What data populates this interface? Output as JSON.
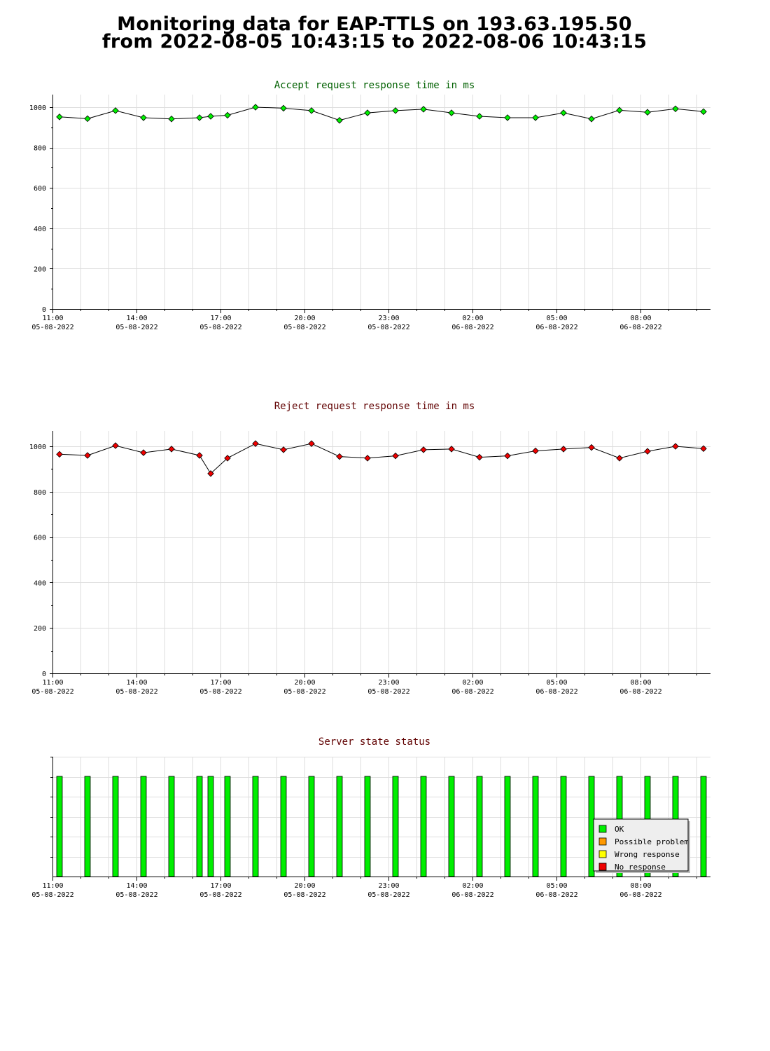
{
  "page": {
    "title_line1": "Monitoring data for EAP-TTLS on 193.63.195.50",
    "title_line2": "from 2022-08-05 10:43:15 to 2022-08-06 10:43:15"
  },
  "colors": {
    "accept_title": "#006000",
    "reject_title": "#600000",
    "status_title": "#600000",
    "accept_marker": "#00ee00",
    "reject_marker": "#ee0000",
    "ok": "#00ee00",
    "possible_problem": "#ff9900",
    "wrong_response": "#ffff00",
    "no_response": "#ee0000",
    "grid": "#dddddd"
  },
  "x_axis_labels": [
    {
      "time": "11:00",
      "date": "05-08-2022",
      "hour": 11
    },
    {
      "time": "14:00",
      "date": "05-08-2022",
      "hour": 14
    },
    {
      "time": "17:00",
      "date": "05-08-2022",
      "hour": 17
    },
    {
      "time": "20:00",
      "date": "05-08-2022",
      "hour": 20
    },
    {
      "time": "23:00",
      "date": "05-08-2022",
      "hour": 23
    },
    {
      "time": "02:00",
      "date": "06-08-2022",
      "hour": 26
    },
    {
      "time": "05:00",
      "date": "06-08-2022",
      "hour": 29
    },
    {
      "time": "08:00",
      "date": "06-08-2022",
      "hour": 32
    }
  ],
  "legend": [
    {
      "label": "OK",
      "color": "#00ee00"
    },
    {
      "label": "Possible problem",
      "color": "#ff9900"
    },
    {
      "label": "Wrong response",
      "color": "#ffff00"
    },
    {
      "label": "No response",
      "color": "#ee0000"
    }
  ],
  "chart_data": [
    {
      "type": "line",
      "title": "Accept request response time in ms",
      "xlabel": "",
      "ylabel": "",
      "x_unit": "hour of 05-08-2022 (values above 24 fall on 06-08-2022)",
      "xlim": [
        11,
        34.5
      ],
      "ylim": [
        0,
        1000
      ],
      "yticks": [
        0,
        200,
        400,
        600,
        800,
        1000
      ],
      "grid": true,
      "series": [
        {
          "x": [
            11.25,
            12.25,
            13.25,
            14.25,
            15.25,
            16.25,
            16.65,
            17.25,
            18.25,
            19.25,
            20.25,
            21.25,
            22.25,
            23.25,
            24.25,
            25.25,
            26.25,
            27.25,
            28.25,
            29.25,
            30.25,
            31.25,
            32.25,
            33.25,
            34.25
          ],
          "values": [
            952,
            943,
            983,
            948,
            942,
            948,
            955,
            960,
            1000,
            995,
            983,
            935,
            972,
            983,
            990,
            972,
            955,
            948,
            948,
            972,
            942,
            985,
            975,
            992,
            978
          ]
        }
      ]
    },
    {
      "type": "line",
      "title": "Reject request response time in ms",
      "xlabel": "",
      "ylabel": "",
      "x_unit": "hour of 05-08-2022 (values above 24 fall on 06-08-2022)",
      "xlim": [
        11,
        34.5
      ],
      "ylim": [
        0,
        1000
      ],
      "yticks": [
        0,
        200,
        400,
        600,
        800,
        1000
      ],
      "grid": true,
      "series": [
        {
          "x": [
            11.25,
            12.25,
            13.25,
            14.25,
            15.25,
            16.25,
            16.65,
            17.25,
            18.25,
            19.25,
            20.25,
            21.25,
            22.25,
            23.25,
            24.25,
            25.25,
            26.25,
            27.25,
            28.25,
            29.25,
            30.25,
            31.25,
            32.25,
            33.25,
            34.25
          ],
          "values": [
            965,
            960,
            1003,
            972,
            988,
            960,
            880,
            948,
            1012,
            985,
            1012,
            955,
            948,
            958,
            985,
            988,
            952,
            958,
            980,
            988,
            995,
            948,
            978,
            1000,
            990
          ]
        }
      ]
    },
    {
      "type": "bar",
      "title": "Server state status",
      "xlabel": "",
      "ylabel": "",
      "x_unit": "hour of 05-08-2022 (values above 24 fall on 06-08-2022)",
      "xlim": [
        11,
        34.5
      ],
      "legend_position": "bottom-right",
      "x": [
        11.25,
        12.25,
        13.25,
        14.25,
        15.25,
        16.25,
        16.65,
        17.25,
        18.25,
        19.25,
        20.25,
        21.25,
        22.25,
        23.25,
        24.25,
        25.25,
        26.25,
        27.25,
        28.25,
        29.25,
        30.25,
        31.25,
        32.25,
        33.25,
        34.25
      ],
      "status": [
        "OK",
        "OK",
        "OK",
        "OK",
        "OK",
        "OK",
        "OK",
        "OK",
        "OK",
        "OK",
        "OK",
        "OK",
        "OK",
        "OK",
        "OK",
        "OK",
        "OK",
        "OK",
        "OK",
        "OK",
        "OK",
        "OK",
        "OK",
        "OK",
        "OK"
      ]
    }
  ]
}
